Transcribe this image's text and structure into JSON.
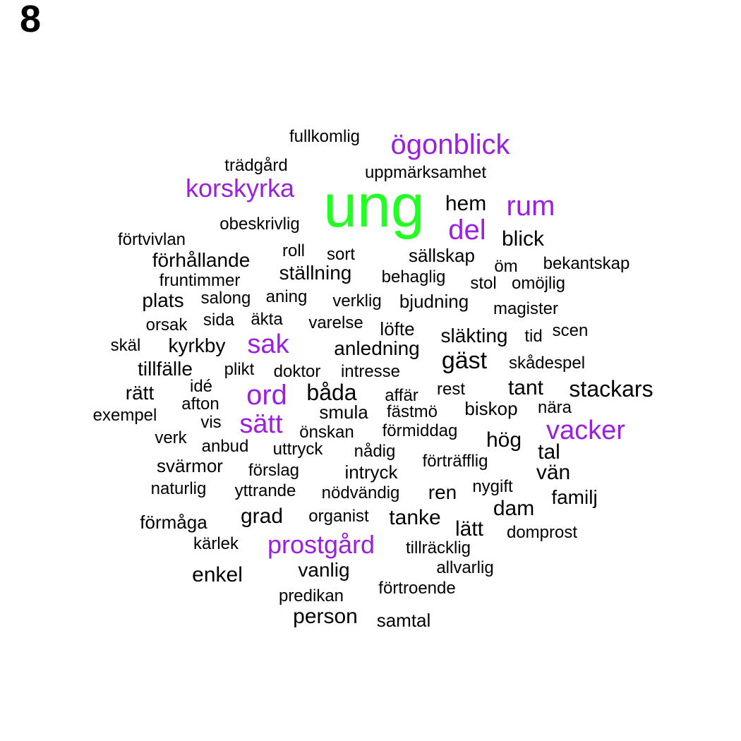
{
  "panel_label": "8",
  "colors": {
    "top": "#22ff22",
    "major": "#9a1fe0",
    "regular": "#000000"
  },
  "words": [
    {
      "text": "ung",
      "tier": "top"
    },
    {
      "text": "ögonblick",
      "tier": "major"
    },
    {
      "text": "korskyrka",
      "tier": "major"
    },
    {
      "text": "rum",
      "tier": "major"
    },
    {
      "text": "del",
      "tier": "major"
    },
    {
      "text": "sak",
      "tier": "major"
    },
    {
      "text": "ord",
      "tier": "major"
    },
    {
      "text": "sätt",
      "tier": "major"
    },
    {
      "text": "vacker",
      "tier": "major"
    },
    {
      "text": "prostgård",
      "tier": "major"
    },
    {
      "text": "fullkomlig",
      "tier": "regular"
    },
    {
      "text": "trädgård",
      "tier": "regular"
    },
    {
      "text": "uppmärksamhet",
      "tier": "regular"
    },
    {
      "text": "hem",
      "tier": "regular"
    },
    {
      "text": "obeskrivlig",
      "tier": "regular"
    },
    {
      "text": "blick",
      "tier": "regular"
    },
    {
      "text": "förtvivlan",
      "tier": "regular"
    },
    {
      "text": "roll",
      "tier": "regular"
    },
    {
      "text": "sort",
      "tier": "regular"
    },
    {
      "text": "sällskap",
      "tier": "regular"
    },
    {
      "text": "förhållande",
      "tier": "regular"
    },
    {
      "text": "öm",
      "tier": "regular"
    },
    {
      "text": "bekantskap",
      "tier": "regular"
    },
    {
      "text": "ställning",
      "tier": "regular"
    },
    {
      "text": "fruntimmer",
      "tier": "regular"
    },
    {
      "text": "behaglig",
      "tier": "regular"
    },
    {
      "text": "stol",
      "tier": "regular"
    },
    {
      "text": "omöjlig",
      "tier": "regular"
    },
    {
      "text": "plats",
      "tier": "regular"
    },
    {
      "text": "salong",
      "tier": "regular"
    },
    {
      "text": "aning",
      "tier": "regular"
    },
    {
      "text": "verklig",
      "tier": "regular"
    },
    {
      "text": "bjudning",
      "tier": "regular"
    },
    {
      "text": "magister",
      "tier": "regular"
    },
    {
      "text": "orsak",
      "tier": "regular"
    },
    {
      "text": "sida",
      "tier": "regular"
    },
    {
      "text": "äkta",
      "tier": "regular"
    },
    {
      "text": "varelse",
      "tier": "regular"
    },
    {
      "text": "löfte",
      "tier": "regular"
    },
    {
      "text": "släkting",
      "tier": "regular"
    },
    {
      "text": "tid",
      "tier": "regular"
    },
    {
      "text": "scen",
      "tier": "regular"
    },
    {
      "text": "skäl",
      "tier": "regular"
    },
    {
      "text": "kyrkby",
      "tier": "regular"
    },
    {
      "text": "anledning",
      "tier": "regular"
    },
    {
      "text": "gäst",
      "tier": "regular"
    },
    {
      "text": "skådespel",
      "tier": "regular"
    },
    {
      "text": "tillfälle",
      "tier": "regular"
    },
    {
      "text": "plikt",
      "tier": "regular"
    },
    {
      "text": "doktor",
      "tier": "regular"
    },
    {
      "text": "intresse",
      "tier": "regular"
    },
    {
      "text": "rätt",
      "tier": "regular"
    },
    {
      "text": "idé",
      "tier": "regular"
    },
    {
      "text": "båda",
      "tier": "regular"
    },
    {
      "text": "affär",
      "tier": "regular"
    },
    {
      "text": "rest",
      "tier": "regular"
    },
    {
      "text": "tant",
      "tier": "regular"
    },
    {
      "text": "stackars",
      "tier": "regular"
    },
    {
      "text": "afton",
      "tier": "regular"
    },
    {
      "text": "exempel",
      "tier": "regular"
    },
    {
      "text": "smula",
      "tier": "regular"
    },
    {
      "text": "fästmö",
      "tier": "regular"
    },
    {
      "text": "biskop",
      "tier": "regular"
    },
    {
      "text": "nära",
      "tier": "regular"
    },
    {
      "text": "vis",
      "tier": "regular"
    },
    {
      "text": "verk",
      "tier": "regular"
    },
    {
      "text": "önskan",
      "tier": "regular"
    },
    {
      "text": "förmiddag",
      "tier": "regular"
    },
    {
      "text": "hög",
      "tier": "regular"
    },
    {
      "text": "tal",
      "tier": "regular"
    },
    {
      "text": "anbud",
      "tier": "regular"
    },
    {
      "text": "uttryck",
      "tier": "regular"
    },
    {
      "text": "nådig",
      "tier": "regular"
    },
    {
      "text": "förträfflig",
      "tier": "regular"
    },
    {
      "text": "svärmor",
      "tier": "regular"
    },
    {
      "text": "förslag",
      "tier": "regular"
    },
    {
      "text": "intryck",
      "tier": "regular"
    },
    {
      "text": "vän",
      "tier": "regular"
    },
    {
      "text": "naturlig",
      "tier": "regular"
    },
    {
      "text": "yttrande",
      "tier": "regular"
    },
    {
      "text": "nödvändig",
      "tier": "regular"
    },
    {
      "text": "ren",
      "tier": "regular"
    },
    {
      "text": "nygift",
      "tier": "regular"
    },
    {
      "text": "familj",
      "tier": "regular"
    },
    {
      "text": "dam",
      "tier": "regular"
    },
    {
      "text": "förmåga",
      "tier": "regular"
    },
    {
      "text": "grad",
      "tier": "regular"
    },
    {
      "text": "organist",
      "tier": "regular"
    },
    {
      "text": "tanke",
      "tier": "regular"
    },
    {
      "text": "lätt",
      "tier": "regular"
    },
    {
      "text": "domprost",
      "tier": "regular"
    },
    {
      "text": "kärlek",
      "tier": "regular"
    },
    {
      "text": "tillräcklig",
      "tier": "regular"
    },
    {
      "text": "allvarlig",
      "tier": "regular"
    },
    {
      "text": "enkel",
      "tier": "regular"
    },
    {
      "text": "vanlig",
      "tier": "regular"
    },
    {
      "text": "förtroende",
      "tier": "regular"
    },
    {
      "text": "predikan",
      "tier": "regular"
    },
    {
      "text": "person",
      "tier": "regular"
    },
    {
      "text": "samtal",
      "tier": "regular"
    }
  ]
}
